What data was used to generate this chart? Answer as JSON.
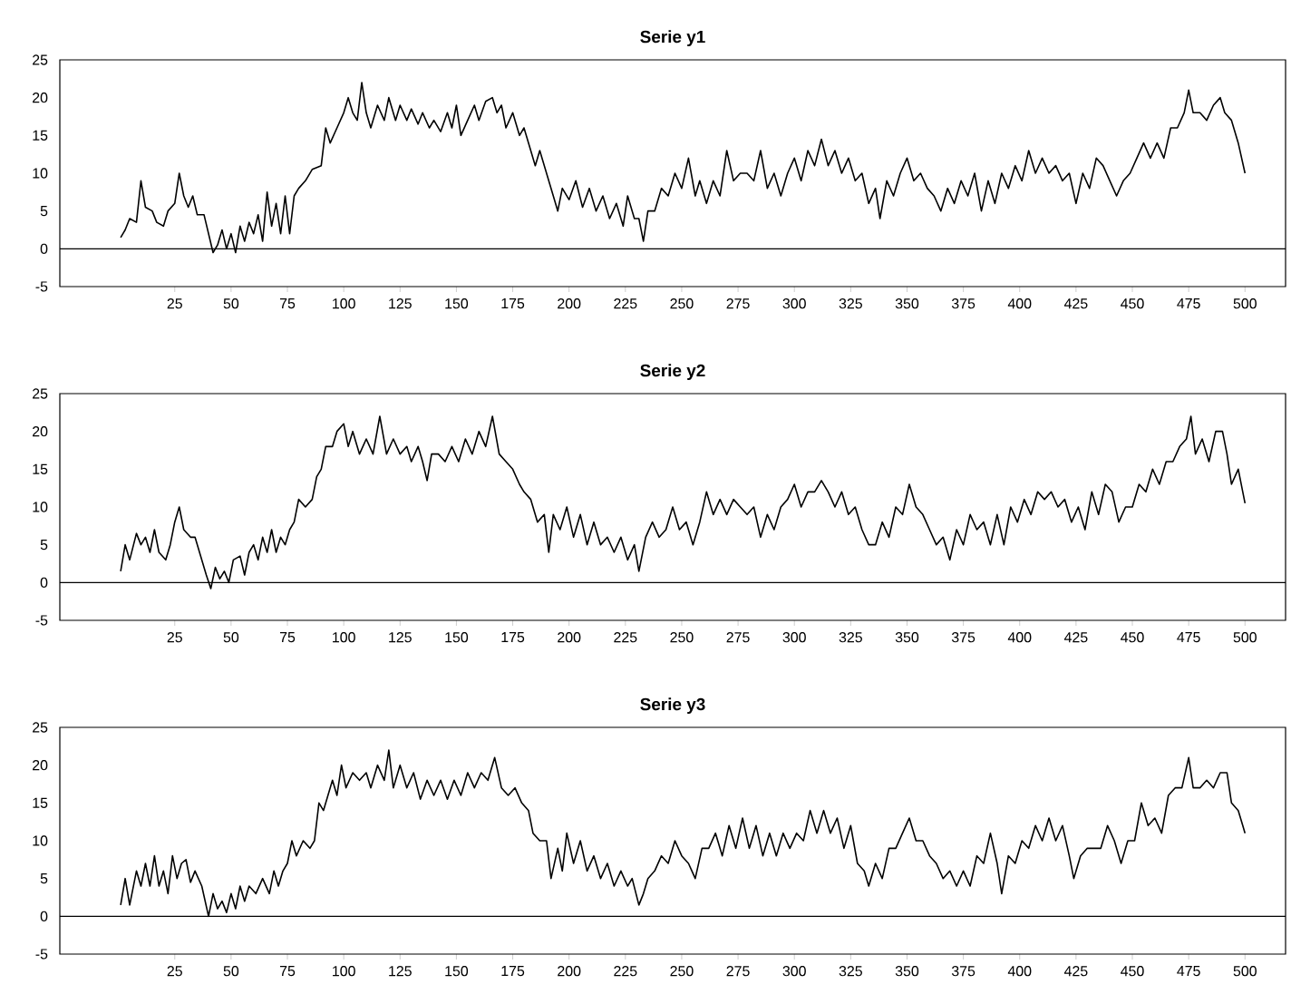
{
  "chart_data": [
    {
      "type": "line",
      "title": "Serie y1",
      "xlim": [
        -26,
        518
      ],
      "ylim": [
        -5,
        25
      ],
      "xticks": [
        25,
        50,
        75,
        100,
        125,
        150,
        175,
        200,
        225,
        250,
        275,
        300,
        325,
        350,
        375,
        400,
        425,
        450,
        475,
        500
      ],
      "yticks": [
        -5,
        0,
        5,
        10,
        15,
        20,
        25
      ],
      "ref_lines": [
        {
          "axis": "y",
          "value": 0
        }
      ],
      "line_style": "solid",
      "series": [
        {
          "color": "#000000",
          "x": [
            1,
            3,
            5,
            8,
            10,
            12,
            15,
            17,
            20,
            22,
            25,
            27,
            29,
            31,
            33,
            35,
            38,
            40,
            42,
            44,
            46,
            48,
            50,
            52,
            54,
            56,
            58,
            60,
            62,
            64,
            66,
            68,
            70,
            72,
            74,
            76,
            78,
            80,
            83,
            86,
            90,
            92,
            94,
            97,
            100,
            102,
            104,
            106,
            108,
            110,
            112,
            115,
            118,
            120,
            123,
            125,
            128,
            130,
            133,
            135,
            138,
            140,
            143,
            146,
            148,
            150,
            152,
            155,
            158,
            160,
            163,
            166,
            168,
            170,
            172,
            175,
            178,
            180,
            183,
            185,
            187,
            190,
            193,
            195,
            197,
            200,
            203,
            206,
            209,
            212,
            215,
            218,
            221,
            224,
            226,
            229,
            231,
            233,
            235,
            238,
            241,
            244,
            247,
            250,
            253,
            256,
            258,
            261,
            264,
            267,
            270,
            273,
            276,
            279,
            282,
            285,
            288,
            291,
            294,
            297,
            300,
            303,
            306,
            309,
            312,
            315,
            318,
            321,
            324,
            327,
            330,
            333,
            336,
            338,
            341,
            344,
            347,
            350,
            353,
            356,
            359,
            362,
            365,
            368,
            371,
            374,
            377,
            380,
            383,
            386,
            389,
            392,
            395,
            398,
            401,
            404,
            407,
            410,
            413,
            416,
            419,
            422,
            425,
            428,
            431,
            434,
            437,
            440,
            443,
            446,
            449,
            452,
            455,
            458,
            461,
            464,
            467,
            470,
            473,
            475,
            477,
            480,
            483,
            486,
            489,
            491,
            494,
            497,
            500
          ],
          "values": [
            1.5,
            2.5,
            4,
            3.5,
            9,
            5.5,
            5,
            3.5,
            3,
            5,
            6,
            10,
            7,
            5.5,
            7,
            4.5,
            4.5,
            2,
            -0.5,
            0.5,
            2.5,
            0,
            2,
            -0.5,
            3,
            1,
            3.5,
            2,
            4.5,
            1,
            7.5,
            3,
            6,
            2,
            7,
            2,
            7,
            8,
            9,
            10.5,
            11,
            16,
            14,
            16,
            18,
            20,
            18,
            17,
            22,
            18,
            16,
            19,
            17,
            20,
            17,
            19,
            17,
            18.5,
            16.5,
            18,
            16,
            17,
            15.5,
            18,
            16,
            19,
            15,
            17,
            19,
            17,
            19.5,
            20,
            18,
            19,
            16,
            18,
            15,
            16,
            13,
            11,
            13,
            10,
            7,
            5,
            8,
            6.5,
            9,
            5.5,
            8,
            5,
            7,
            4,
            6,
            3,
            7,
            4,
            4,
            1,
            5,
            5,
            8,
            7,
            10,
            8,
            12,
            7,
            9,
            6,
            9,
            7,
            13,
            9,
            10,
            10,
            9,
            13,
            8,
            10,
            7,
            10,
            12,
            9,
            13,
            11,
            14.5,
            11,
            13,
            10,
            12,
            9,
            10,
            6,
            8,
            4,
            9,
            7,
            10,
            12,
            9,
            10,
            8,
            7,
            5,
            8,
            6,
            9,
            7,
            10,
            5,
            9,
            6,
            10,
            8,
            11,
            9,
            13,
            10,
            12,
            10,
            11,
            9,
            10,
            6,
            10,
            8,
            12,
            11,
            9,
            7,
            9,
            10,
            12,
            14,
            12,
            14,
            12,
            16,
            16,
            18,
            21,
            18,
            18,
            17,
            19,
            20,
            18,
            17,
            14,
            10
          ]
        }
      ]
    },
    {
      "type": "line",
      "title": "Serie y2",
      "xlim": [
        -26,
        518
      ],
      "ylim": [
        -5,
        25
      ],
      "xticks": [
        25,
        50,
        75,
        100,
        125,
        150,
        175,
        200,
        225,
        250,
        275,
        300,
        325,
        350,
        375,
        400,
        425,
        450,
        475,
        500
      ],
      "yticks": [
        -5,
        0,
        5,
        10,
        15,
        20,
        25
      ],
      "ref_lines": [
        {
          "axis": "y",
          "value": 0
        }
      ],
      "line_style": "solid",
      "series": [
        {
          "color": "#000000",
          "x": [
            1,
            3,
            5,
            8,
            10,
            12,
            14,
            16,
            18,
            21,
            23,
            25,
            27,
            29,
            32,
            34,
            36,
            39,
            41,
            43,
            45,
            47,
            49,
            51,
            54,
            56,
            58,
            60,
            62,
            64,
            66,
            68,
            70,
            72,
            74,
            76,
            78,
            80,
            83,
            86,
            88,
            90,
            92,
            95,
            97,
            100,
            102,
            104,
            107,
            110,
            113,
            116,
            119,
            122,
            125,
            128,
            130,
            133,
            135,
            137,
            139,
            142,
            145,
            148,
            151,
            154,
            157,
            160,
            163,
            166,
            169,
            172,
            175,
            178,
            180,
            183,
            186,
            189,
            191,
            193,
            196,
            199,
            202,
            205,
            208,
            211,
            214,
            217,
            220,
            223,
            226,
            229,
            231,
            234,
            237,
            240,
            243,
            246,
            249,
            252,
            255,
            258,
            261,
            264,
            267,
            270,
            273,
            276,
            279,
            282,
            285,
            288,
            291,
            294,
            297,
            300,
            303,
            306,
            309,
            312,
            315,
            318,
            321,
            324,
            327,
            330,
            333,
            336,
            339,
            342,
            345,
            348,
            351,
            354,
            357,
            360,
            363,
            366,
            369,
            372,
            375,
            378,
            381,
            384,
            387,
            390,
            393,
            396,
            399,
            402,
            405,
            408,
            411,
            414,
            417,
            420,
            423,
            426,
            429,
            432,
            435,
            438,
            441,
            444,
            447,
            450,
            453,
            456,
            459,
            462,
            465,
            468,
            471,
            474,
            476,
            478,
            481,
            484,
            487,
            490,
            492,
            494,
            497,
            500
          ],
          "values": [
            1.5,
            5,
            3,
            6.5,
            5,
            6,
            4,
            7,
            4,
            3,
            5,
            8,
            10,
            7,
            6,
            6,
            4,
            1,
            -0.8,
            2,
            0.5,
            1.5,
            0,
            3,
            3.5,
            1,
            4,
            5,
            3,
            6,
            4,
            7,
            4,
            6,
            5,
            7,
            8,
            11,
            10,
            11,
            14,
            15,
            18,
            18,
            20,
            21,
            18,
            20,
            17,
            19,
            17,
            22,
            17,
            19,
            17,
            18,
            16,
            18,
            16,
            13.5,
            17,
            17,
            16,
            18,
            16,
            19,
            17,
            20,
            18,
            22,
            17,
            16,
            15,
            13,
            12,
            11,
            8,
            9,
            4,
            9,
            7,
            10,
            6,
            9,
            5,
            8,
            5,
            6,
            4,
            6,
            3,
            5,
            1.5,
            6,
            8,
            6,
            7,
            10,
            7,
            8,
            5,
            8,
            12,
            9,
            11,
            9,
            11,
            10,
            9,
            10,
            6,
            9,
            7,
            10,
            11,
            13,
            10,
            12,
            12,
            13.5,
            12,
            10,
            12,
            9,
            10,
            7,
            5,
            5,
            8,
            6,
            10,
            9,
            13,
            10,
            9,
            7,
            5,
            6,
            3,
            7,
            5,
            9,
            7,
            8,
            5,
            9,
            5,
            10,
            8,
            11,
            9,
            12,
            11,
            12,
            10,
            11,
            8,
            10,
            7,
            12,
            9,
            13,
            12,
            8,
            10,
            10,
            13,
            12,
            15,
            13,
            16,
            16,
            18,
            19,
            22,
            17,
            19,
            16,
            20,
            20,
            17,
            13,
            15,
            10.5
          ]
        }
      ]
    },
    {
      "type": "line",
      "title": "Serie y3",
      "xlim": [
        -26,
        518
      ],
      "ylim": [
        -5,
        25
      ],
      "xticks": [
        25,
        50,
        75,
        100,
        125,
        150,
        175,
        200,
        225,
        250,
        275,
        300,
        325,
        350,
        375,
        400,
        425,
        450,
        475,
        500
      ],
      "yticks": [
        -5,
        0,
        5,
        10,
        15,
        20,
        25
      ],
      "ref_lines": [
        {
          "axis": "y",
          "value": 0
        }
      ],
      "line_style": "solid",
      "series": [
        {
          "color": "#000000",
          "x": [
            1,
            3,
            5,
            8,
            10,
            12,
            14,
            16,
            18,
            20,
            22,
            24,
            26,
            28,
            30,
            32,
            34,
            37,
            40,
            42,
            44,
            46,
            48,
            50,
            52,
            54,
            56,
            58,
            61,
            64,
            67,
            69,
            71,
            73,
            75,
            77,
            79,
            82,
            85,
            87,
            89,
            91,
            93,
            95,
            97,
            99,
            101,
            104,
            107,
            110,
            112,
            115,
            118,
            120,
            122,
            125,
            128,
            131,
            134,
            137,
            140,
            143,
            146,
            149,
            152,
            155,
            158,
            161,
            164,
            167,
            170,
            173,
            176,
            179,
            182,
            184,
            187,
            190,
            192,
            195,
            197,
            199,
            202,
            205,
            208,
            211,
            214,
            217,
            220,
            223,
            226,
            228,
            231,
            233,
            235,
            238,
            241,
            244,
            247,
            250,
            253,
            256,
            259,
            262,
            265,
            268,
            271,
            274,
            277,
            280,
            283,
            286,
            289,
            292,
            295,
            298,
            301,
            304,
            307,
            310,
            313,
            316,
            319,
            322,
            325,
            328,
            331,
            333,
            336,
            339,
            342,
            345,
            348,
            351,
            354,
            357,
            360,
            363,
            366,
            369,
            372,
            375,
            378,
            381,
            384,
            387,
            390,
            392,
            395,
            398,
            401,
            404,
            407,
            410,
            413,
            416,
            419,
            422,
            424,
            427,
            430,
            433,
            436,
            439,
            442,
            445,
            448,
            451,
            454,
            457,
            460,
            463,
            466,
            469,
            472,
            475,
            477,
            480,
            483,
            486,
            489,
            492,
            494,
            497,
            499,
            500
          ],
          "values": [
            1.5,
            5,
            1.5,
            6,
            4,
            7,
            4,
            8,
            4,
            6,
            3,
            8,
            5,
            7,
            7.5,
            4.5,
            6,
            4,
            0,
            3,
            1,
            2,
            0.5,
            3,
            1,
            4,
            2,
            4,
            3,
            5,
            3,
            6,
            4,
            6,
            7,
            10,
            8,
            10,
            9,
            10,
            15,
            14,
            16,
            18,
            16,
            20,
            17,
            19,
            18,
            19,
            17,
            20,
            18,
            22,
            17,
            20,
            17,
            19,
            15.5,
            18,
            16,
            18,
            15.5,
            18,
            16,
            19,
            17,
            19,
            18,
            21,
            17,
            16,
            17,
            15,
            14,
            11,
            10,
            10,
            5,
            9,
            6,
            11,
            7,
            10,
            6,
            8,
            5,
            7,
            4,
            6,
            4,
            5,
            1.5,
            3,
            5,
            6,
            8,
            7,
            10,
            8,
            7,
            5,
            9,
            9,
            11,
            8,
            12,
            9,
            13,
            9,
            12,
            8,
            11,
            8,
            11,
            9,
            11,
            10,
            14,
            11,
            14,
            11,
            13,
            9,
            12,
            7,
            6,
            4,
            7,
            5,
            9,
            9,
            11,
            13,
            10,
            10,
            8,
            7,
            5,
            6,
            4,
            6,
            4,
            8,
            7,
            11,
            7,
            3,
            8,
            7,
            10,
            9,
            12,
            10,
            13,
            10,
            12,
            8,
            5,
            8,
            9,
            9,
            9,
            12,
            10,
            7,
            10,
            10,
            15,
            12,
            13,
            11,
            16,
            17,
            17,
            21,
            17,
            17,
            18,
            17,
            19,
            19,
            15,
            14,
            12,
            11
          ]
        }
      ]
    }
  ]
}
